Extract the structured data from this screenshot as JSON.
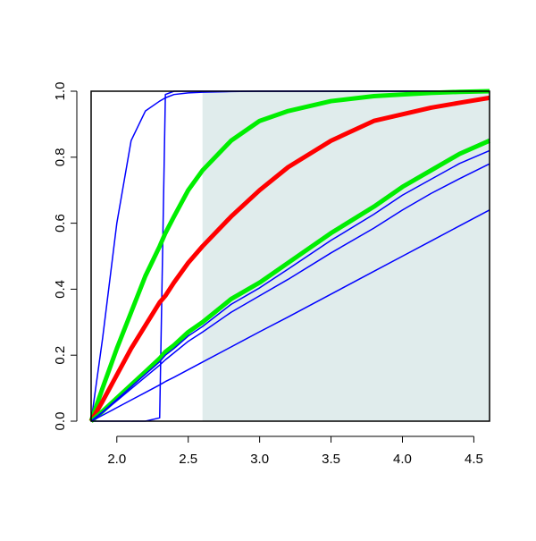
{
  "chart_data": {
    "type": "line",
    "x": [
      1.82,
      1.9,
      2.0,
      2.1,
      2.2,
      2.3,
      2.32,
      2.34,
      2.4,
      2.5,
      2.6,
      2.8,
      3.0,
      3.2,
      3.5,
      3.8,
      4.0,
      4.2,
      4.4,
      4.61
    ],
    "series": [
      {
        "color": "#0000ff",
        "width": 1.5,
        "values": [
          0,
          0.25,
          0.6,
          0.85,
          0.94,
          0.97,
          0.975,
          0.98,
          0.99,
          0.995,
          0.997,
          0.999,
          1,
          1,
          1,
          1,
          1,
          1,
          1,
          1
        ]
      },
      {
        "color": "#0000ff",
        "width": 1.5,
        "values": [
          0,
          0,
          0,
          0,
          0,
          0.01,
          0.5,
          0.99,
          1,
          1,
          1,
          1,
          1,
          1,
          1,
          1,
          1,
          1,
          1,
          1
        ]
      },
      {
        "color": "#00ee00",
        "width": 5,
        "values": [
          0,
          0.1,
          0.22,
          0.33,
          0.44,
          0.53,
          0.55,
          0.57,
          0.62,
          0.7,
          0.76,
          0.85,
          0.91,
          0.94,
          0.97,
          0.985,
          0.99,
          0.995,
          0.998,
          1
        ]
      },
      {
        "color": "#ff0000",
        "width": 5,
        "values": [
          0,
          0.06,
          0.14,
          0.22,
          0.29,
          0.36,
          0.37,
          0.38,
          0.42,
          0.48,
          0.53,
          0.62,
          0.7,
          0.77,
          0.85,
          0.91,
          0.93,
          0.95,
          0.965,
          0.98
        ]
      },
      {
        "color": "#0000aa",
        "width": 1.5,
        "values": [
          0,
          0.035,
          0.075,
          0.115,
          0.155,
          0.195,
          0.205,
          0.215,
          0.235,
          0.275,
          0.305,
          0.375,
          0.425,
          0.485,
          0.575,
          0.655,
          0.715,
          0.765,
          0.815,
          0.855
        ]
      },
      {
        "color": "#00ee00",
        "width": 5,
        "values": [
          0,
          0.03,
          0.07,
          0.11,
          0.15,
          0.19,
          0.2,
          0.21,
          0.23,
          0.27,
          0.3,
          0.37,
          0.42,
          0.48,
          0.57,
          0.65,
          0.71,
          0.76,
          0.81,
          0.85
        ]
      },
      {
        "color": "#0000ff",
        "width": 1.5,
        "values": [
          0,
          0.028,
          0.066,
          0.104,
          0.142,
          0.18,
          0.19,
          0.2,
          0.22,
          0.258,
          0.287,
          0.354,
          0.404,
          0.461,
          0.548,
          0.627,
          0.685,
          0.733,
          0.781,
          0.82
        ]
      },
      {
        "color": "#0000ff",
        "width": 1.5,
        "values": [
          0,
          0.026,
          0.062,
          0.098,
          0.134,
          0.17,
          0.178,
          0.186,
          0.207,
          0.242,
          0.27,
          0.33,
          0.38,
          0.43,
          0.51,
          0.585,
          0.64,
          0.69,
          0.735,
          0.78
        ]
      },
      {
        "color": "#0000ff",
        "width": 1.5,
        "values": [
          0,
          0.018,
          0.041,
          0.064,
          0.087,
          0.11,
          0.115,
          0.12,
          0.133,
          0.156,
          0.179,
          0.225,
          0.271,
          0.316,
          0.385,
          0.454,
          0.5,
          0.546,
          0.592,
          0.64
        ]
      }
    ],
    "shaded_region": {
      "color": "#e0ecec",
      "x": [
        2.6,
        4.61
      ],
      "y": [
        0,
        1
      ]
    },
    "xlim": [
      1.82,
      4.61
    ],
    "ylim": [
      0,
      1
    ],
    "xticks": [
      {
        "value": 2,
        "label": "2.0"
      },
      2.5,
      {
        "value": 3,
        "label": "3.0"
      },
      3.5,
      {
        "value": 4,
        "label": "4.0"
      },
      4.5
    ],
    "yticks": [
      {
        "value": 0,
        "label": "0.0"
      },
      0.2,
      0.4,
      0.6,
      0.8,
      {
        "value": 1,
        "label": "1.0"
      }
    ]
  }
}
